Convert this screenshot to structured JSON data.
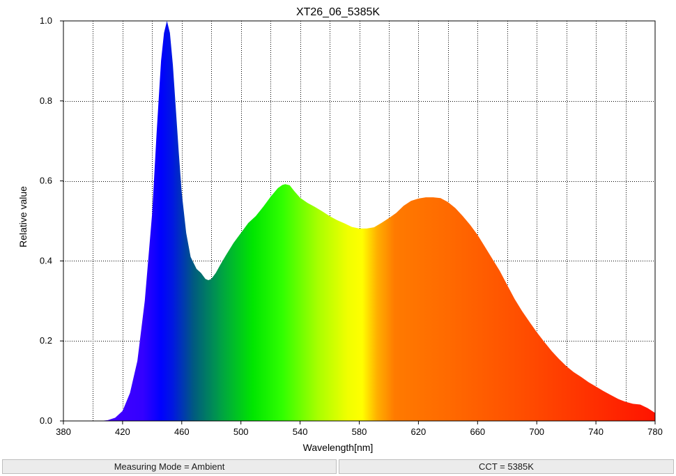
{
  "chart_data": {
    "type": "area",
    "title": "XT26_06_5385K",
    "xlabel": "Wavelength[nm]",
    "ylabel": "Relative value",
    "xlim": [
      380,
      780
    ],
    "ylim": [
      0,
      1.0
    ],
    "xticks": [
      380,
      420,
      460,
      500,
      540,
      580,
      620,
      660,
      700,
      740,
      780
    ],
    "xtick_labels": [
      "380",
      "420",
      "460",
      "500",
      "540",
      "580",
      "620",
      "660",
      "700",
      "740",
      "780"
    ],
    "yticks": [
      0,
      0.2,
      0.4,
      0.6,
      0.8,
      1.0
    ],
    "ytick_labels": [
      "0.0",
      "0.2",
      "0.4",
      "0.6",
      "0.8",
      "1.0"
    ],
    "grid": true,
    "fill": "visible-spectrum-colors",
    "x": [
      380,
      405,
      410,
      415,
      420,
      425,
      430,
      435,
      440,
      443,
      446,
      448,
      450,
      452,
      454,
      456,
      458,
      460,
      463,
      466,
      470,
      473,
      476,
      478,
      480,
      483,
      486,
      490,
      495,
      500,
      505,
      510,
      515,
      520,
      525,
      528,
      530,
      533,
      536,
      540,
      545,
      550,
      555,
      560,
      565,
      570,
      575,
      580,
      585,
      590,
      595,
      600,
      605,
      610,
      615,
      620,
      625,
      630,
      635,
      640,
      645,
      650,
      655,
      660,
      665,
      670,
      675,
      680,
      685,
      690,
      695,
      700,
      705,
      710,
      715,
      720,
      725,
      730,
      735,
      740,
      745,
      750,
      755,
      760,
      765,
      770,
      775,
      780
    ],
    "y": [
      0.0,
      0.0,
      0.002,
      0.008,
      0.025,
      0.07,
      0.15,
      0.3,
      0.52,
      0.72,
      0.9,
      0.97,
      1.0,
      0.97,
      0.89,
      0.78,
      0.67,
      0.57,
      0.47,
      0.41,
      0.38,
      0.37,
      0.355,
      0.352,
      0.355,
      0.37,
      0.39,
      0.415,
      0.445,
      0.47,
      0.495,
      0.512,
      0.535,
      0.56,
      0.582,
      0.59,
      0.592,
      0.589,
      0.575,
      0.558,
      0.545,
      0.535,
      0.524,
      0.512,
      0.502,
      0.494,
      0.485,
      0.481,
      0.481,
      0.484,
      0.495,
      0.507,
      0.52,
      0.538,
      0.55,
      0.556,
      0.559,
      0.559,
      0.557,
      0.547,
      0.532,
      0.512,
      0.49,
      0.465,
      0.435,
      0.405,
      0.375,
      0.34,
      0.305,
      0.275,
      0.248,
      0.222,
      0.198,
      0.175,
      0.155,
      0.137,
      0.122,
      0.11,
      0.097,
      0.086,
      0.075,
      0.065,
      0.055,
      0.048,
      0.043,
      0.041,
      0.032,
      0.02
    ]
  },
  "status": {
    "measuring_mode": "Measuring Mode = Ambient",
    "cct": "CCT = 5385K"
  }
}
